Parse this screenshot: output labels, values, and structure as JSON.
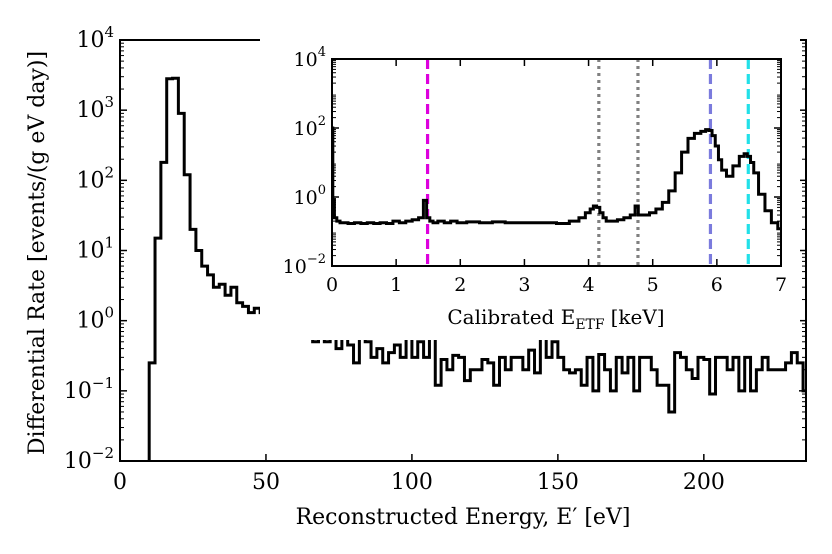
{
  "chart_data": [
    {
      "type": "line",
      "drawstyle": "steps",
      "xlabel": "Reconstructed Energy, E′ [eV]",
      "ylabel": "Differential Rate [events/(g eV day)]",
      "xlim": [
        0,
        235
      ],
      "ylim": [
        0.01,
        10000
      ],
      "yscale": "log",
      "xticks": [
        0,
        50,
        100,
        150,
        200
      ],
      "yticks": [
        {
          "value": 0.01,
          "base": "10",
          "exp": "−2"
        },
        {
          "value": 0.1,
          "base": "10",
          "exp": "−1"
        },
        {
          "value": 1,
          "base": "10",
          "exp": "0"
        },
        {
          "value": 10,
          "base": "10",
          "exp": "1"
        },
        {
          "value": 100,
          "base": "10",
          "exp": "2"
        },
        {
          "value": 1000,
          "base": "10",
          "exp": "3"
        },
        {
          "value": 10000,
          "base": "10",
          "exp": "4"
        }
      ],
      "series": [
        {
          "color": "#000000",
          "x": [
            9,
            11,
            13,
            15,
            17,
            19,
            21,
            23,
            25,
            27,
            29,
            31,
            33,
            35,
            37,
            39,
            41,
            43,
            45,
            47,
            49,
            51,
            53,
            55,
            57,
            59,
            61,
            63,
            65,
            67,
            69,
            71,
            73,
            75,
            77,
            79,
            81,
            83,
            85,
            87,
            89,
            91,
            93,
            95,
            97,
            99,
            101,
            103,
            105,
            107,
            109,
            111,
            113,
            115,
            117,
            119,
            121,
            123,
            125,
            127,
            129,
            131,
            133,
            135,
            137,
            139,
            141,
            143,
            145,
            147,
            149,
            151,
            153,
            155,
            157,
            159,
            161,
            163,
            165,
            167,
            169,
            171,
            173,
            175,
            177,
            179,
            181,
            183,
            185,
            187,
            189,
            191,
            193,
            195,
            197,
            199,
            201,
            203,
            205,
            207,
            209,
            211,
            213,
            215,
            217,
            219,
            221,
            223,
            225,
            227,
            229,
            231,
            233,
            235
          ],
          "y": [
            0.005,
            0.25,
            15,
            180,
            2800,
            2850,
            900,
            120,
            20,
            10,
            6,
            4.5,
            3,
            3.3,
            2.3,
            3,
            1.8,
            1.6,
            1.3,
            1.5,
            1.3,
            1.2,
            1.2,
            1.1,
            1.0,
            1.2,
            0.9,
            1.1,
            0.9,
            0.5,
            0.65,
            0.5,
            0.6,
            0.4,
            0.6,
            0.45,
            0.25,
            0.6,
            0.5,
            0.3,
            0.4,
            0.25,
            0.35,
            0.45,
            0.3,
            0.8,
            0.3,
            0.5,
            0.3,
            0.75,
            0.12,
            0.28,
            0.2,
            0.32,
            0.3,
            0.14,
            0.2,
            0.2,
            0.28,
            0.25,
            0.12,
            0.3,
            0.2,
            0.3,
            0.3,
            0.2,
            0.38,
            0.18,
            0.8,
            0.3,
            0.5,
            0.3,
            0.2,
            0.18,
            0.2,
            0.12,
            0.3,
            0.1,
            0.33,
            0.2,
            0.1,
            0.3,
            0.18,
            0.3,
            0.1,
            0.3,
            0.3,
            0.2,
            0.12,
            0.12,
            0.05,
            0.35,
            0.3,
            0.2,
            0.15,
            0.3,
            0.28,
            0.09,
            0.3,
            0.3,
            0.2,
            0.3,
            0.1,
            0.3,
            0.1,
            0.2,
            0.3,
            0.2,
            0.2,
            0.2,
            0.25,
            0.35,
            0.25,
            0.1
          ]
        }
      ]
    },
    {
      "type": "line",
      "drawstyle": "steps",
      "xlabel": "Calibrated E_ETF [keV]",
      "xlabel_main": "Calibrated E",
      "xlabel_sub": "ETF",
      "xlabel_unit": "[keV]",
      "ylabel": "",
      "xlim": [
        0,
        7
      ],
      "ylim": [
        0.01,
        10000
      ],
      "yscale": "log",
      "xticks": [
        0,
        1,
        2,
        3,
        4,
        5,
        6,
        7
      ],
      "yticks": [
        {
          "value": 0.01,
          "base": "10",
          "exp": "−2"
        },
        {
          "value": 1,
          "base": "10",
          "exp": "0"
        },
        {
          "value": 100,
          "base": "10",
          "exp": "2"
        },
        {
          "value": 10000,
          "base": "10",
          "exp": "4"
        }
      ],
      "vlines": [
        {
          "x": 1.49,
          "color": "#dd00dd",
          "style": "dashed"
        },
        {
          "x": 4.16,
          "color": "#808080",
          "style": "dotted"
        },
        {
          "x": 4.77,
          "color": "#808080",
          "style": "dotted"
        },
        {
          "x": 5.9,
          "color": "#7b7bdd",
          "style": "dashed"
        },
        {
          "x": 6.49,
          "color": "#22e0e8",
          "style": "dashed"
        }
      ],
      "series": [
        {
          "color": "#000000",
          "x": [
            0.0,
            0.025,
            0.05,
            0.1,
            0.15,
            0.2,
            0.3,
            0.4,
            0.5,
            0.6,
            0.7,
            0.8,
            0.9,
            1.0,
            1.1,
            1.2,
            1.3,
            1.4,
            1.45,
            1.5,
            1.55,
            1.6,
            1.7,
            1.8,
            1.9,
            2.0,
            2.2,
            2.4,
            2.6,
            2.8,
            3.0,
            3.2,
            3.4,
            3.6,
            3.8,
            3.9,
            4.0,
            4.05,
            4.1,
            4.15,
            4.2,
            4.25,
            4.3,
            4.4,
            4.5,
            4.6,
            4.7,
            4.75,
            4.8,
            4.9,
            5.0,
            5.1,
            5.2,
            5.3,
            5.4,
            5.5,
            5.6,
            5.7,
            5.8,
            5.85,
            5.9,
            5.95,
            6.0,
            6.05,
            6.1,
            6.2,
            6.3,
            6.4,
            6.45,
            6.5,
            6.55,
            6.6,
            6.7,
            6.8,
            6.9,
            7.0
          ],
          "y": [
            100,
            0.8,
            0.25,
            0.2,
            0.18,
            0.18,
            0.17,
            0.18,
            0.17,
            0.18,
            0.17,
            0.18,
            0.17,
            0.2,
            0.18,
            0.2,
            0.22,
            0.25,
            0.8,
            0.25,
            0.2,
            0.18,
            0.2,
            0.18,
            0.2,
            0.18,
            0.19,
            0.18,
            0.19,
            0.18,
            0.18,
            0.18,
            0.18,
            0.17,
            0.2,
            0.25,
            0.35,
            0.45,
            0.55,
            0.5,
            0.35,
            0.25,
            0.2,
            0.2,
            0.22,
            0.25,
            0.3,
            0.55,
            0.3,
            0.3,
            0.35,
            0.45,
            0.7,
            1.5,
            5,
            20,
            50,
            70,
            80,
            90,
            85,
            60,
            30,
            12,
            6,
            4,
            8,
            15,
            18,
            15,
            10,
            5,
            1.2,
            0.4,
            0.18,
            0.12
          ]
        }
      ]
    }
  ]
}
